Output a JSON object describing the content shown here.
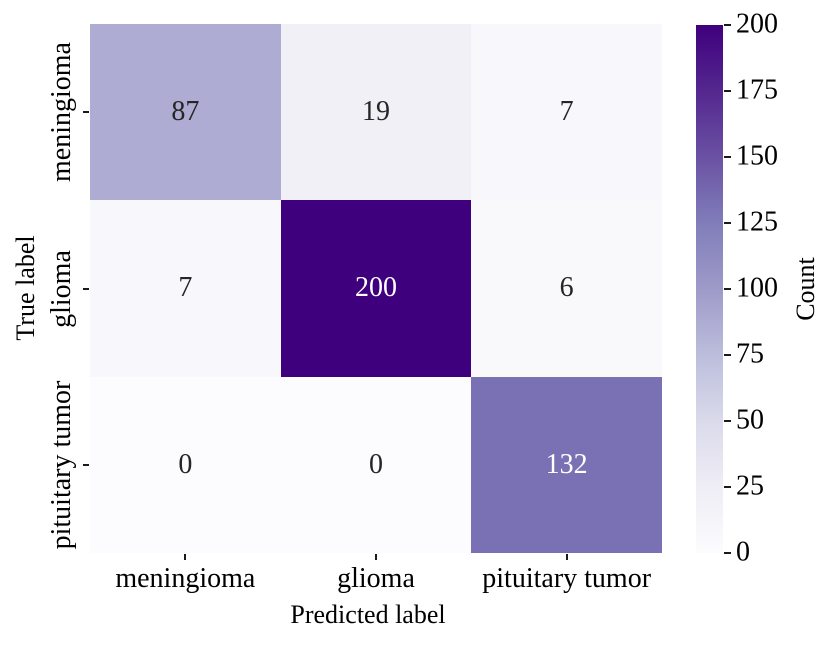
{
  "chart_data": {
    "type": "heatmap",
    "title": "",
    "xlabel": "Predicted label",
    "ylabel": "True label",
    "x_categories": [
      "meningioma",
      "glioma",
      "pituitary tumor"
    ],
    "y_categories": [
      "meningioma",
      "glioma",
      "pituitary tumor"
    ],
    "values": [
      [
        87,
        19,
        7
      ],
      [
        7,
        200,
        6
      ],
      [
        0,
        0,
        132
      ]
    ],
    "vmin": 0,
    "vmax": 200,
    "grid": false,
    "colorbar": {
      "label": "Count",
      "ticks": [
        0,
        25,
        50,
        75,
        100,
        125,
        150,
        175,
        200
      ],
      "colormap_name": "Purples",
      "colormap_stops": [
        "#fcfbfd",
        "#efedf5",
        "#dadaeb",
        "#bcbddc",
        "#9e9ac8",
        "#807dba",
        "#6a51a3",
        "#54278f",
        "#3f007d"
      ]
    },
    "colors": {
      "annotation_dark": "#262626",
      "annotation_light": "#ffffff",
      "tick_mark": "#1a1a1a",
      "background": "#ffffff"
    }
  }
}
